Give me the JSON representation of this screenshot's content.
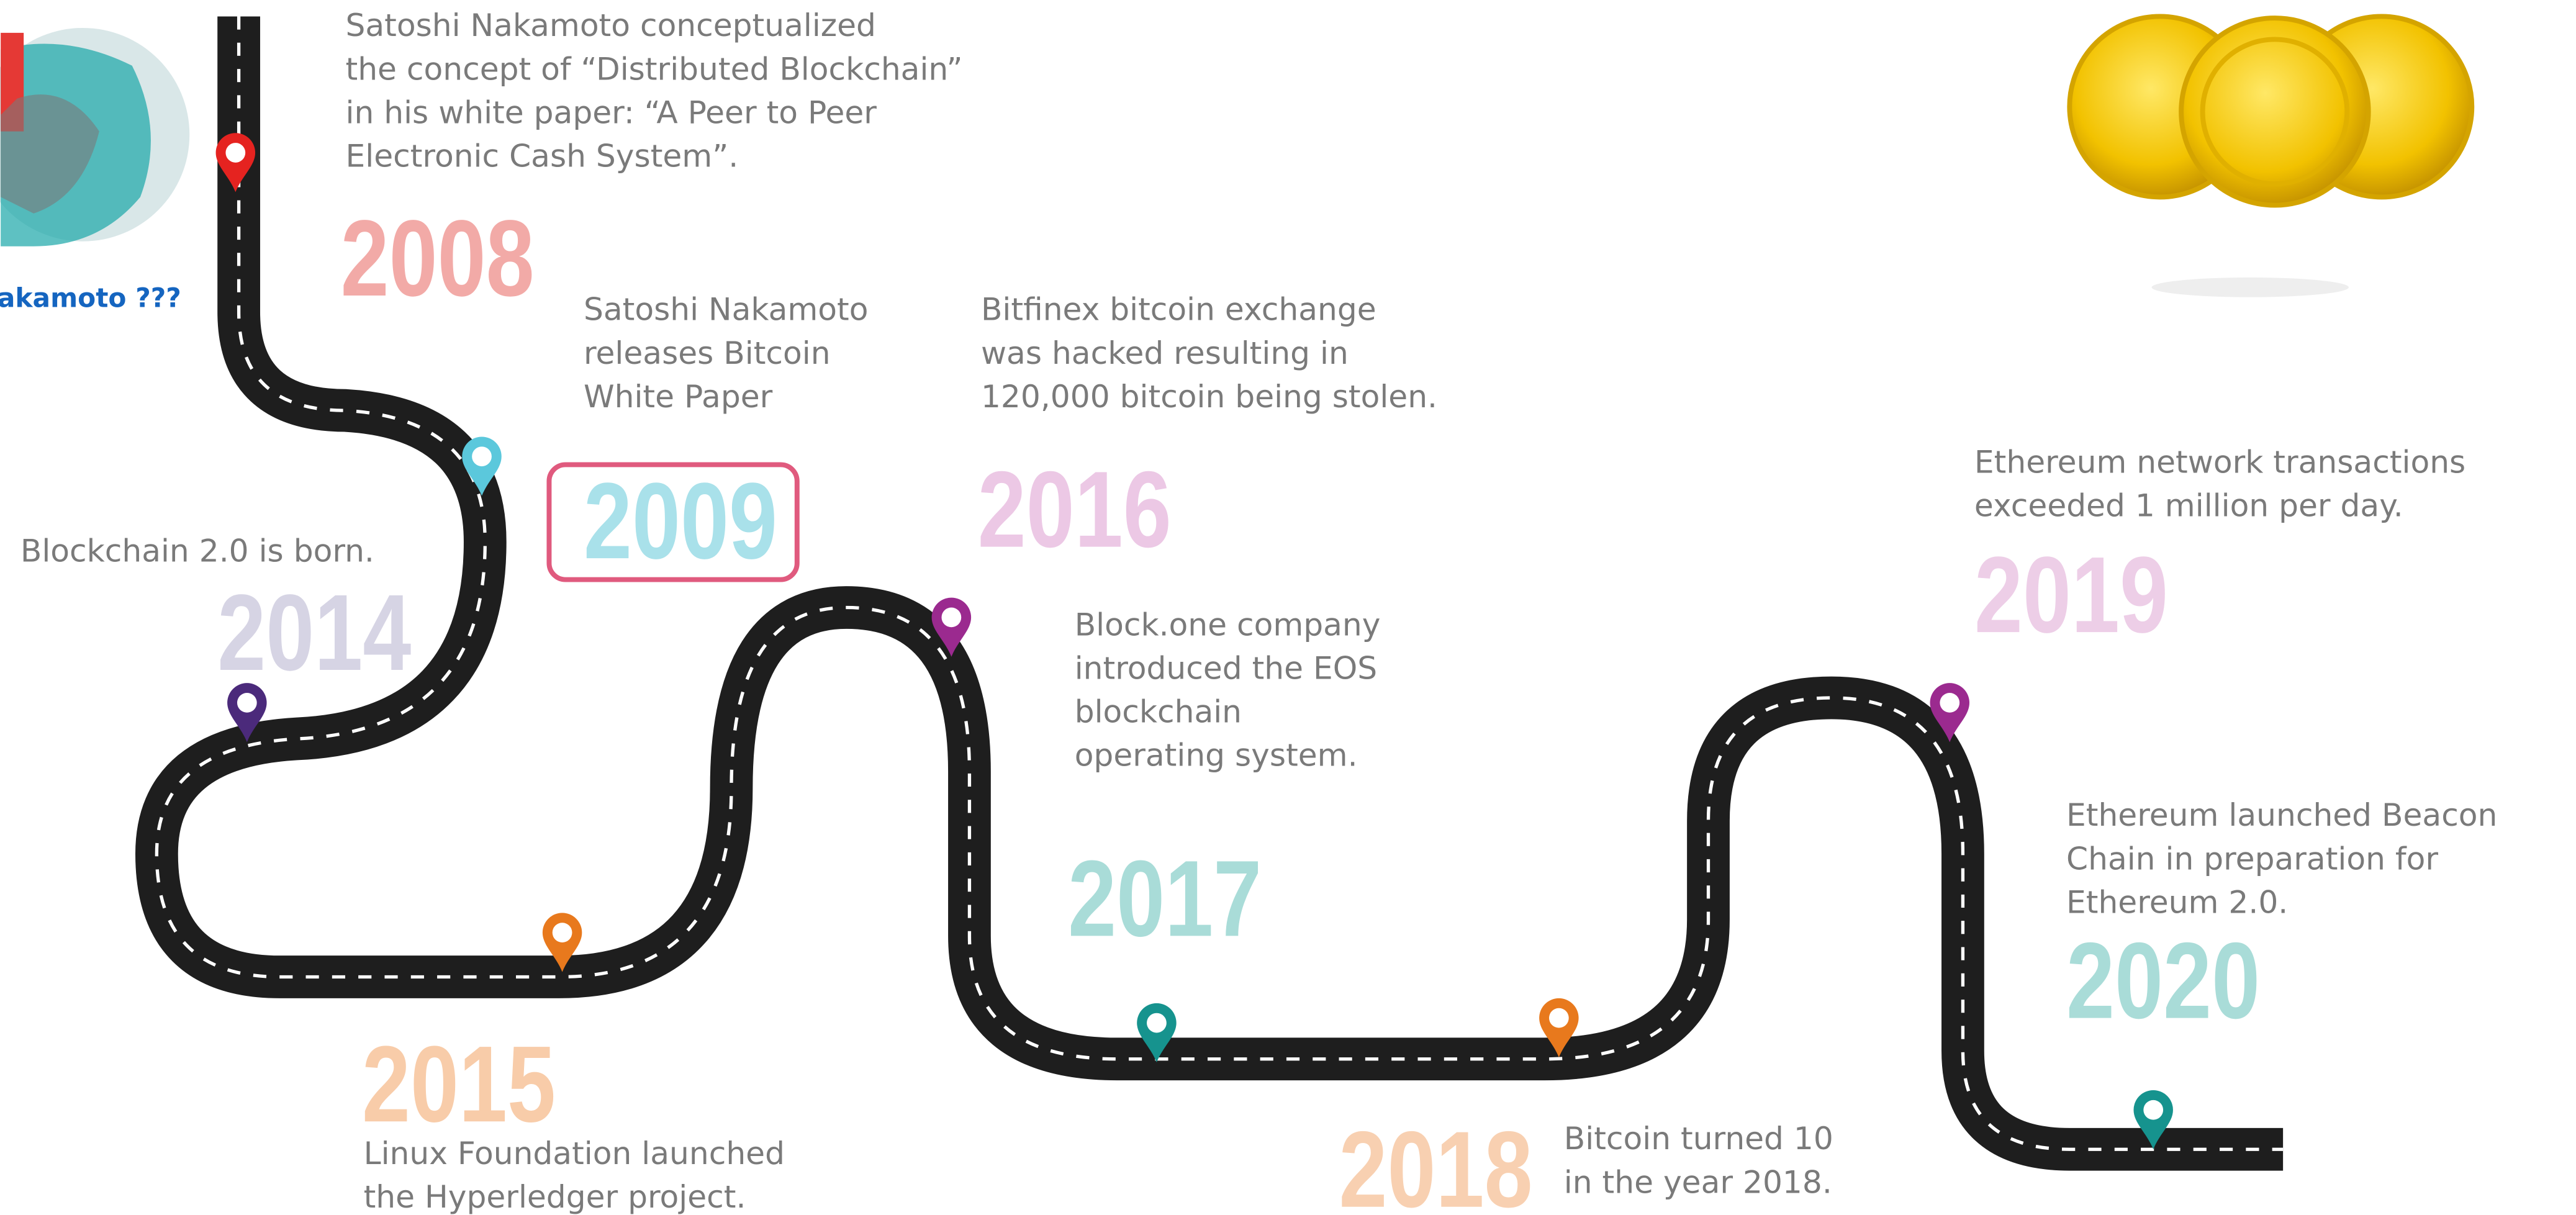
{
  "caption": "akamoto ???",
  "events": [
    {
      "year": "2008",
      "lines": [
        "Satoshi Nakamoto conceptualized",
        "the concept of “Distributed Blockchain”",
        "in his white paper: “A Peer to Peer",
        "Electronic Cash System”."
      ]
    },
    {
      "year": "2009",
      "lines": [
        "Satoshi Nakamoto",
        "releases Bitcoin",
        "White Paper"
      ]
    },
    {
      "year": "2014",
      "lines": [
        "Blockchain 2.0 is born."
      ]
    },
    {
      "year": "2015",
      "lines": [
        "Linux Foundation launched",
        "the Hyperledger project."
      ]
    },
    {
      "year": "2016",
      "lines": [
        "Bitfinex bitcoin exchange",
        "was hacked resulting in",
        "120,000 bitcoin being stolen."
      ]
    },
    {
      "year": "2017",
      "lines": [
        "Block.one company",
        "introduced the EOS",
        "blockchain",
        "operating system."
      ]
    },
    {
      "year": "2018",
      "lines": [
        "Bitcoin turned 10",
        "in the year 2018."
      ]
    },
    {
      "year": "2019",
      "lines": [
        "Ethereum network transactions",
        "exceeded 1 million per day."
      ]
    },
    {
      "year": "2020",
      "lines": [
        "Ethereum launched Beacon",
        "Chain in preparation for",
        "Ethereum 2.0."
      ]
    }
  ]
}
